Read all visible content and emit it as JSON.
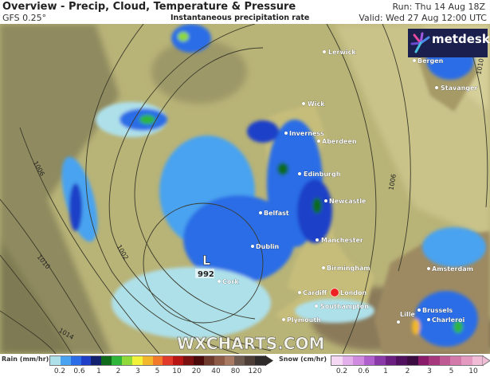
{
  "header": {
    "title": "Overview - Precip, Cloud, Temperature & Pressure",
    "model": "GFS 0.25°",
    "subtitle": "Instantaneous precipitation rate",
    "run": "Run: Thu 14 Aug 18Z",
    "valid": "Valid: Wed 27 Aug 12:00 UTC"
  },
  "logo": {
    "text": "metdesk"
  },
  "watermark": "WXCHARTS.COM",
  "low_pressure": {
    "symbol": "L",
    "value": "992"
  },
  "isobar_labels": [
    "1006",
    "1010",
    "1014",
    "1002",
    "1010",
    "1006"
  ],
  "cities": [
    "Lerwick",
    "Bergen",
    "Stavanger",
    "Wick",
    "Inverness",
    "Aberdeen",
    "Edinburgh",
    "Newcastle",
    "Belfast",
    "Manchester",
    "Dublin",
    "Birmingham",
    "Amsterdam",
    "Cork",
    "Cardiff",
    "London",
    "Southampton",
    "Plymouth",
    "Brussels",
    "Lille",
    "Charleroi"
  ],
  "legend": {
    "rain_label": "Rain (mm/hr)",
    "rain_ticks": [
      "0.2",
      "0.6",
      "1",
      "2",
      "3",
      "5",
      "10",
      "20",
      "40",
      "80",
      "120"
    ],
    "rain_colors": [
      "#aee0ea",
      "#4aa3f0",
      "#2a6de6",
      "#1f3fc8",
      "#12206e",
      "#0f6a1a",
      "#2fb53a",
      "#8fd93a",
      "#f2f23a",
      "#f2b72a",
      "#f2782a",
      "#e23a2a",
      "#b81515",
      "#7a1010",
      "#4a0a0a",
      "#6e3a2e",
      "#8e5a48",
      "#a87a64",
      "#6e5a4e",
      "#4e3e38",
      "#2e2a2a"
    ],
    "snow_label": "Snow (cm/hr)",
    "snow_ticks": [
      "0.2",
      "0.6",
      "1",
      "2",
      "3",
      "5",
      "10"
    ],
    "snow_colors": [
      "#f4d8f4",
      "#e4b0ec",
      "#d08ae0",
      "#b060cc",
      "#8a3aa8",
      "#6a1e80",
      "#50105e",
      "#3a0c40",
      "#8a1a6a",
      "#a8387e",
      "#c05a94",
      "#d47aaa",
      "#e49ac0",
      "#f0bcd6"
    ]
  }
}
